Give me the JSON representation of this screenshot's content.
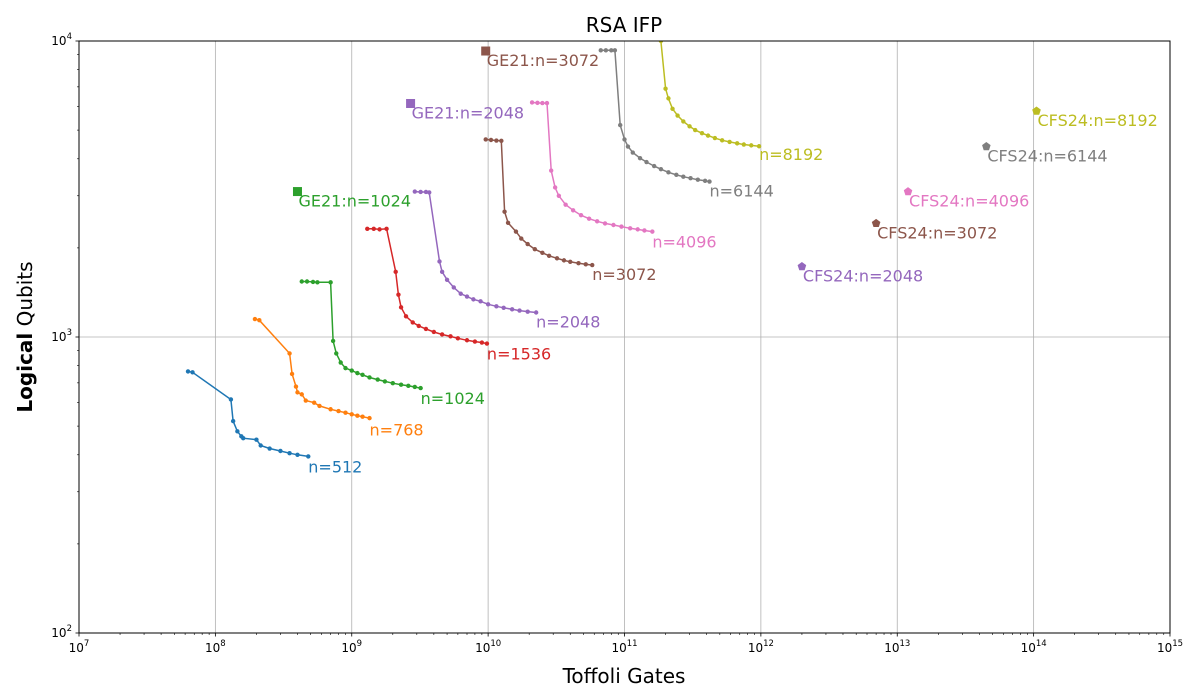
{
  "chart_data": {
    "type": "line",
    "title": "RSA IFP",
    "xlabel": "Toffoli Gates",
    "ylabel_bold": "Logical",
    "ylabel_rest": " Qubits",
    "xscale": "log",
    "yscale": "log",
    "xlim": [
      10000000.0,
      1000000000000000.0
    ],
    "ylim": [
      100,
      10000
    ],
    "grid": true,
    "x_ticks": [
      {
        "base": "10",
        "exp": "7",
        "value": 10000000.0
      },
      {
        "base": "10",
        "exp": "8",
        "value": 100000000.0
      },
      {
        "base": "10",
        "exp": "9",
        "value": 1000000000.0
      },
      {
        "base": "10",
        "exp": "10",
        "value": 10000000000.0
      },
      {
        "base": "10",
        "exp": "11",
        "value": 100000000000.0
      },
      {
        "base": "10",
        "exp": "12",
        "value": 1000000000000.0
      },
      {
        "base": "10",
        "exp": "13",
        "value": 10000000000000.0
      },
      {
        "base": "10",
        "exp": "14",
        "value": 100000000000000.0
      },
      {
        "base": "10",
        "exp": "15",
        "value": 1000000000000000.0
      }
    ],
    "y_ticks": [
      {
        "base": "10",
        "exp": "2",
        "value": 100
      },
      {
        "base": "10",
        "exp": "3",
        "value": 1000
      },
      {
        "base": "10",
        "exp": "4",
        "value": 10000
      }
    ],
    "series": [
      {
        "name": "n=512",
        "color": "#1f77b4",
        "points": [
          [
            63000000.0,
            765
          ],
          [
            68000000.0,
            760
          ],
          [
            130000000.0,
            615
          ],
          [
            135000000.0,
            520
          ],
          [
            145000000.0,
            480
          ],
          [
            155000000.0,
            462
          ],
          [
            160000000.0,
            455
          ],
          [
            200000000.0,
            450
          ],
          [
            215000000.0,
            430
          ],
          [
            250000000.0,
            420
          ],
          [
            300000000.0,
            412
          ],
          [
            350000000.0,
            405
          ],
          [
            400000000.0,
            400
          ],
          [
            480000000.0,
            395
          ]
        ]
      },
      {
        "name": "n=768",
        "color": "#ff7f0e",
        "points": [
          [
            195000000.0,
            1150
          ],
          [
            210000000.0,
            1140
          ],
          [
            350000000.0,
            880
          ],
          [
            365000000.0,
            750
          ],
          [
            390000000.0,
            680
          ],
          [
            400000000.0,
            650
          ],
          [
            430000000.0,
            640
          ],
          [
            460000000.0,
            610
          ],
          [
            530000000.0,
            600
          ],
          [
            580000000.0,
            585
          ],
          [
            700000000.0,
            570
          ],
          [
            800000000.0,
            562
          ],
          [
            900000000.0,
            555
          ],
          [
            1000000000.0,
            548
          ],
          [
            1100000000.0,
            542
          ],
          [
            1200000000.0,
            538
          ],
          [
            1350000000.0,
            532
          ]
        ]
      },
      {
        "name": "n=1024",
        "color": "#2ca02c",
        "points": [
          [
            430000000.0,
            1540
          ],
          [
            470000000.0,
            1540
          ],
          [
            520000000.0,
            1535
          ],
          [
            560000000.0,
            1530
          ],
          [
            700000000.0,
            1530
          ],
          [
            730000000.0,
            970
          ],
          [
            770000000.0,
            880
          ],
          [
            830000000.0,
            820
          ],
          [
            900000000.0,
            785
          ],
          [
            1000000000.0,
            770
          ],
          [
            1100000000.0,
            755
          ],
          [
            1200000000.0,
            745
          ],
          [
            1350000000.0,
            730
          ],
          [
            1550000000.0,
            718
          ],
          [
            1750000000.0,
            708
          ],
          [
            2000000000.0,
            698
          ],
          [
            2300000000.0,
            690
          ],
          [
            2600000000.0,
            684
          ],
          [
            2900000000.0,
            678
          ],
          [
            3200000000.0,
            672
          ]
        ]
      },
      {
        "name": "n=1536",
        "color": "#d62728",
        "points": [
          [
            1300000000.0,
            2320
          ],
          [
            1450000000.0,
            2320
          ],
          [
            1600000000.0,
            2310
          ],
          [
            1800000000.0,
            2320
          ],
          [
            2100000000.0,
            1660
          ],
          [
            2200000000.0,
            1390
          ],
          [
            2300000000.0,
            1260
          ],
          [
            2500000000.0,
            1175
          ],
          [
            2800000000.0,
            1120
          ],
          [
            3100000000.0,
            1090
          ],
          [
            3500000000.0,
            1065
          ],
          [
            4000000000.0,
            1040
          ],
          [
            4600000000.0,
            1020
          ],
          [
            5300000000.0,
            1005
          ],
          [
            6000000000.0,
            990
          ],
          [
            7000000000.0,
            975
          ],
          [
            8000000000.0,
            965
          ],
          [
            9000000000.0,
            958
          ],
          [
            9800000000.0,
            950
          ]
        ]
      },
      {
        "name": "n=2048",
        "color": "#9467bd",
        "points": [
          [
            2900000000.0,
            3100
          ],
          [
            3200000000.0,
            3090
          ],
          [
            3500000000.0,
            3090
          ],
          [
            3700000000.0,
            3080
          ],
          [
            4400000000.0,
            1800
          ],
          [
            4600000000.0,
            1660
          ],
          [
            5000000000.0,
            1560
          ],
          [
            5600000000.0,
            1470
          ],
          [
            6300000000.0,
            1400
          ],
          [
            7000000000.0,
            1370
          ],
          [
            7800000000.0,
            1340
          ],
          [
            8800000000.0,
            1320
          ],
          [
            10000000000.0,
            1290
          ],
          [
            11500000000.0,
            1270
          ],
          [
            13000000000.0,
            1255
          ],
          [
            15000000000.0,
            1240
          ],
          [
            17000000000.0,
            1228
          ],
          [
            19500000000.0,
            1218
          ],
          [
            22500000000.0,
            1210
          ]
        ]
      },
      {
        "name": "n=3072",
        "color": "#8c564b",
        "points": [
          [
            9600000000.0,
            4650
          ],
          [
            10500000000.0,
            4630
          ],
          [
            11500000000.0,
            4610
          ],
          [
            12500000000.0,
            4600
          ],
          [
            13200000000.0,
            2650
          ],
          [
            14000000000.0,
            2430
          ],
          [
            16000000000.0,
            2270
          ],
          [
            17500000000.0,
            2150
          ],
          [
            19500000000.0,
            2060
          ],
          [
            22000000000.0,
            1980
          ],
          [
            25000000000.0,
            1925
          ],
          [
            28000000000.0,
            1880
          ],
          [
            32000000000.0,
            1845
          ],
          [
            36000000000.0,
            1815
          ],
          [
            40000000000.0,
            1795
          ],
          [
            46000000000.0,
            1775
          ],
          [
            52000000000.0,
            1760
          ],
          [
            58000000000.0,
            1750
          ]
        ]
      },
      {
        "name": "n=4096",
        "color": "#e377c2",
        "points": [
          [
            21000000000.0,
            6200
          ],
          [
            23000000000.0,
            6180
          ],
          [
            25000000000.0,
            6170
          ],
          [
            27000000000.0,
            6170
          ],
          [
            29000000000.0,
            3650
          ],
          [
            31000000000.0,
            3200
          ],
          [
            33000000000.0,
            3000
          ],
          [
            37000000000.0,
            2800
          ],
          [
            42000000000.0,
            2680
          ],
          [
            48000000000.0,
            2580
          ],
          [
            55000000000.0,
            2510
          ],
          [
            63000000000.0,
            2460
          ],
          [
            72000000000.0,
            2420
          ],
          [
            83000000000.0,
            2390
          ],
          [
            95000000000.0,
            2360
          ],
          [
            110000000000.0,
            2330
          ],
          [
            125000000000.0,
            2310
          ],
          [
            140000000000.0,
            2290
          ],
          [
            160000000000.0,
            2270
          ]
        ]
      },
      {
        "name": "n=6144",
        "color": "#7f7f7f",
        "points": [
          [
            67000000000.0,
            9300
          ],
          [
            73000000000.0,
            9300
          ],
          [
            80000000000.0,
            9300
          ],
          [
            85000000000.0,
            9300
          ],
          [
            93000000000.0,
            5200
          ],
          [
            100000000000.0,
            4650
          ],
          [
            106000000000.0,
            4400
          ],
          [
            115000000000.0,
            4200
          ],
          [
            130000000000.0,
            4020
          ],
          [
            145000000000.0,
            3900
          ],
          [
            165000000000.0,
            3780
          ],
          [
            185000000000.0,
            3690
          ],
          [
            210000000000.0,
            3600
          ],
          [
            240000000000.0,
            3530
          ],
          [
            270000000000.0,
            3480
          ],
          [
            305000000000.0,
            3440
          ],
          [
            345000000000.0,
            3400
          ],
          [
            390000000000.0,
            3370
          ],
          [
            420000000000.0,
            3350
          ]
        ]
      },
      {
        "name": "n=8192",
        "color": "#bcbd22",
        "points": [
          [
            185000000000.0,
            10000
          ],
          [
            200000000000.0,
            6900
          ],
          [
            210000000000.0,
            6400
          ],
          [
            225000000000.0,
            5900
          ],
          [
            245000000000.0,
            5600
          ],
          [
            270000000000.0,
            5350
          ],
          [
            300000000000.0,
            5150
          ],
          [
            330000000000.0,
            5000
          ],
          [
            370000000000.0,
            4880
          ],
          [
            410000000000.0,
            4790
          ],
          [
            460000000000.0,
            4700
          ],
          [
            520000000000.0,
            4620
          ],
          [
            590000000000.0,
            4560
          ],
          [
            670000000000.0,
            4510
          ],
          [
            750000000000.0,
            4470
          ],
          [
            850000000000.0,
            4440
          ],
          [
            970000000000.0,
            4410
          ]
        ]
      }
    ],
    "series_labels": [
      {
        "text": "n=512",
        "series": 0,
        "x": 480000000.0,
        "y": 365
      },
      {
        "text": "n=768",
        "series": 1,
        "x": 1350000000.0,
        "y": 487
      },
      {
        "text": "n=1024",
        "series": 2,
        "x": 3200000000.0,
        "y": 623
      },
      {
        "text": "n=1536",
        "series": 3,
        "x": 9800000000.0,
        "y": 880
      },
      {
        "text": "n=2048",
        "series": 4,
        "x": 22500000000.0,
        "y": 1130
      },
      {
        "text": "n=3072",
        "series": 5,
        "x": 58000000000.0,
        "y": 1630
      },
      {
        "text": "n=4096",
        "series": 6,
        "x": 160000000000.0,
        "y": 2100
      },
      {
        "text": "n=6144",
        "series": 7,
        "x": 420000000000.0,
        "y": 3120
      },
      {
        "text": "n=8192",
        "series": 8,
        "x": 970000000000.0,
        "y": 4150
      }
    ],
    "reference_points": [
      {
        "label": "GE21:n=1024",
        "color": "#2ca02c",
        "marker": "square",
        "x": 400000000.0,
        "y": 3100
      },
      {
        "label": "GE21:n=2048",
        "color": "#9467bd",
        "marker": "square",
        "x": 2700000000.0,
        "y": 6150
      },
      {
        "label": "GE21:n=3072",
        "color": "#8c564b",
        "marker": "square",
        "x": 9600000000.0,
        "y": 9250
      },
      {
        "label": "CFS24:n=2048",
        "color": "#9467bd",
        "marker": "pentagon",
        "x": 2000000000000.0,
        "y": 1730
      },
      {
        "label": "CFS24:n=3072",
        "color": "#8c564b",
        "marker": "pentagon",
        "x": 7000000000000.0,
        "y": 2420
      },
      {
        "label": "CFS24:n=4096",
        "color": "#e377c2",
        "marker": "pentagon",
        "x": 12000000000000.0,
        "y": 3100
      },
      {
        "label": "CFS24:n=6144",
        "color": "#7f7f7f",
        "marker": "pentagon",
        "x": 45000000000000.0,
        "y": 4400
      },
      {
        "label": "CFS24:n=8192",
        "color": "#bcbd22",
        "marker": "pentagon",
        "x": 105000000000000.0,
        "y": 5800
      }
    ]
  }
}
